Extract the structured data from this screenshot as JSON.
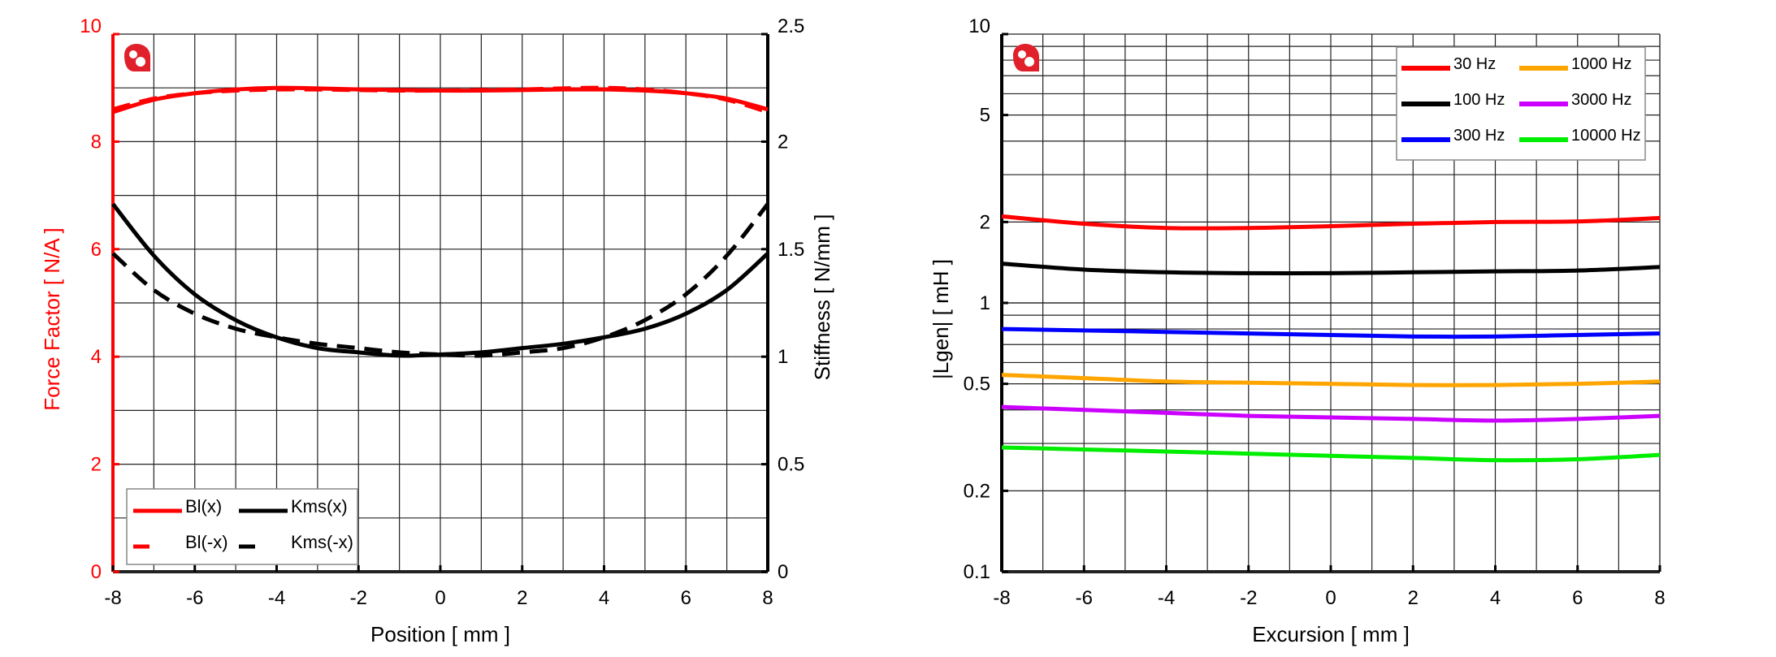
{
  "chart_data": [
    {
      "type": "line",
      "xlabel": "Position [ mm ]",
      "ylabel": "Force Factor [ N/A ]",
      "ylabel_color": "#ff0000",
      "y2label": "Stiffness [ N/mm ]",
      "xlim": [
        -8,
        8
      ],
      "ylim": [
        0,
        10
      ],
      "y2lim": [
        0,
        2.5
      ],
      "grid": true,
      "legend_position": "bottom-left",
      "x_ticks": [
        "-8",
        "-6",
        "-4",
        "-2",
        "0",
        "2",
        "4",
        "6",
        "8"
      ],
      "y_ticks": [
        "0",
        "2",
        "4",
        "6",
        "8",
        "10"
      ],
      "y2_ticks": [
        "0",
        "0.5",
        "1",
        "1.5",
        "2",
        "2.5"
      ],
      "x": [
        -8,
        -7,
        -6,
        -5,
        -4,
        -3,
        -2,
        -1,
        0,
        1,
        2,
        3,
        4,
        5,
        6,
        7,
        8
      ],
      "series": [
        {
          "name": "Bl(x)",
          "axis": "left",
          "color": "#ff0000",
          "dash": false,
          "values": [
            8.55,
            8.78,
            8.9,
            8.97,
            9.0,
            8.99,
            8.97,
            8.96,
            8.95,
            8.95,
            8.96,
            8.97,
            8.97,
            8.95,
            8.9,
            8.8,
            8.6
          ]
        },
        {
          "name": "Bl(-x)",
          "axis": "left",
          "color": "#ff0000",
          "dash": true,
          "values": [
            8.6,
            8.8,
            8.9,
            8.95,
            8.97,
            8.97,
            8.96,
            8.95,
            8.95,
            8.96,
            8.97,
            8.99,
            9.0,
            8.97,
            8.9,
            8.78,
            8.55
          ]
        },
        {
          "name": "Kms(x)",
          "axis": "right",
          "color": "#000000",
          "dash": false,
          "values": [
            1.71,
            1.47,
            1.29,
            1.17,
            1.09,
            1.04,
            1.02,
            1.005,
            1.01,
            1.02,
            1.04,
            1.06,
            1.09,
            1.13,
            1.2,
            1.31,
            1.48
          ]
        },
        {
          "name": "Kms(-x)",
          "axis": "right",
          "color": "#000000",
          "dash": true,
          "values": [
            1.48,
            1.31,
            1.2,
            1.13,
            1.09,
            1.06,
            1.04,
            1.02,
            1.01,
            1.005,
            1.02,
            1.04,
            1.09,
            1.17,
            1.29,
            1.47,
            1.71
          ]
        }
      ]
    },
    {
      "type": "line",
      "xlabel": "Excursion [ mm ]",
      "ylabel": "|Lgen| [ mH ]",
      "xlim": [
        -8,
        8
      ],
      "ylim": [
        0.1,
        10
      ],
      "yscale": "log",
      "grid": true,
      "legend_position": "top-right",
      "x_ticks": [
        "-8",
        "-6",
        "-4",
        "-2",
        "0",
        "2",
        "4",
        "6",
        "8"
      ],
      "y_ticks": [
        "0.1",
        "0.2",
        "0.5",
        "1",
        "2",
        "5",
        "10"
      ],
      "x": [
        -8,
        -6,
        -4,
        -2,
        0,
        2,
        4,
        6,
        8
      ],
      "series": [
        {
          "name": "30 Hz",
          "color": "#ff0000",
          "values": [
            2.1,
            1.97,
            1.9,
            1.9,
            1.93,
            1.97,
            2.0,
            2.01,
            2.07
          ]
        },
        {
          "name": "1000 Hz",
          "color": "#ffa500",
          "values": [
            0.54,
            0.525,
            0.51,
            0.505,
            0.5,
            0.495,
            0.495,
            0.5,
            0.51
          ]
        },
        {
          "name": "100 Hz",
          "color": "#000000",
          "values": [
            1.4,
            1.33,
            1.3,
            1.29,
            1.29,
            1.3,
            1.31,
            1.32,
            1.36
          ]
        },
        {
          "name": "3000 Hz",
          "color": "#cc00ff",
          "values": [
            0.41,
            0.4,
            0.39,
            0.38,
            0.375,
            0.37,
            0.365,
            0.37,
            0.38
          ]
        },
        {
          "name": "300 Hz",
          "color": "#0000ff",
          "values": [
            0.8,
            0.79,
            0.78,
            0.77,
            0.76,
            0.75,
            0.75,
            0.76,
            0.77
          ]
        },
        {
          "name": "10000 Hz",
          "color": "#00ee00",
          "values": [
            0.29,
            0.285,
            0.28,
            0.275,
            0.27,
            0.265,
            0.26,
            0.262,
            0.272
          ]
        }
      ]
    }
  ],
  "logo_color": "#e0202a"
}
